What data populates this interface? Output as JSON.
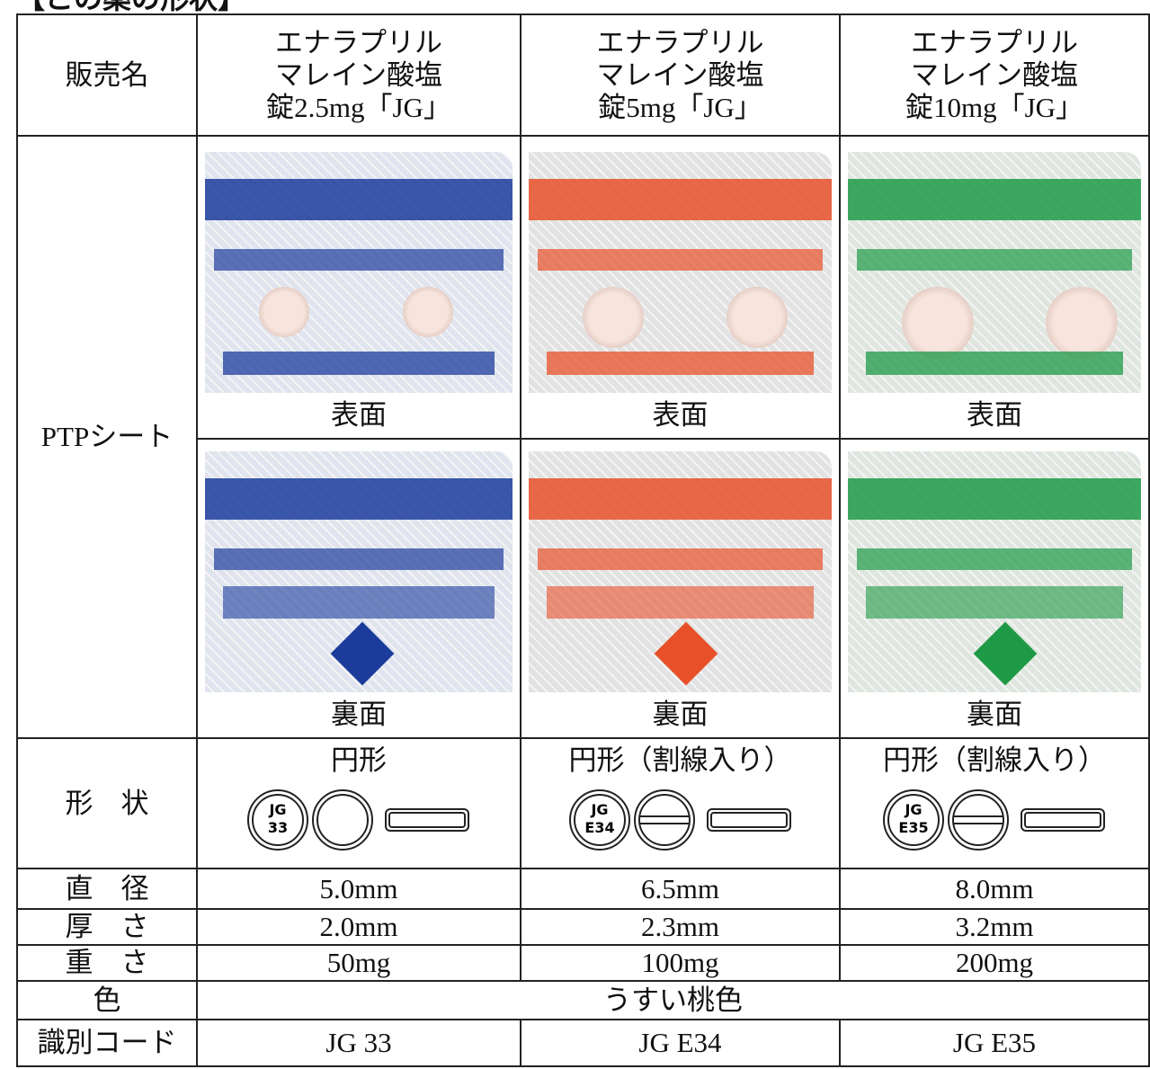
{
  "title": "【この薬の形状】",
  "table": {
    "header": {
      "label": "販売名",
      "products": [
        [
          "エナラプリル",
          "マレイン酸塩",
          "錠2.5mg「JG」"
        ],
        [
          "エナラプリル",
          "マレイン酸塩",
          "錠5mg「JG」"
        ],
        [
          "エナラプリル",
          "マレイン酸塩",
          "錠10mg「JG」"
        ]
      ]
    },
    "ptp": {
      "label": "PTPシート",
      "front_labels": [
        "表面",
        "表面",
        "表面"
      ],
      "back_labels": [
        "裏面",
        "裏面",
        "裏面"
      ]
    },
    "shape": {
      "label": "形　状",
      "descriptions": [
        "円形",
        "円形（割線入り）",
        "円形（割線入り）"
      ],
      "imprints": [
        [
          "JG",
          "33"
        ],
        [
          "JG",
          "E34"
        ],
        [
          "JG",
          "E35"
        ]
      ]
    },
    "rows": [
      {
        "label": "直　径",
        "values": [
          "5.0mm",
          "6.5mm",
          "8.0mm"
        ]
      },
      {
        "label": "厚　さ",
        "values": [
          "2.0mm",
          "2.3mm",
          "3.2mm"
        ]
      },
      {
        "label": "重　さ",
        "values": [
          "50mg",
          "100mg",
          "200mg"
        ]
      }
    ],
    "color": {
      "label": "色",
      "value": "うすい桃色"
    },
    "code": {
      "label": "識別コード",
      "values": [
        "JG 33",
        "JG E34",
        "JG E35"
      ]
    }
  }
}
